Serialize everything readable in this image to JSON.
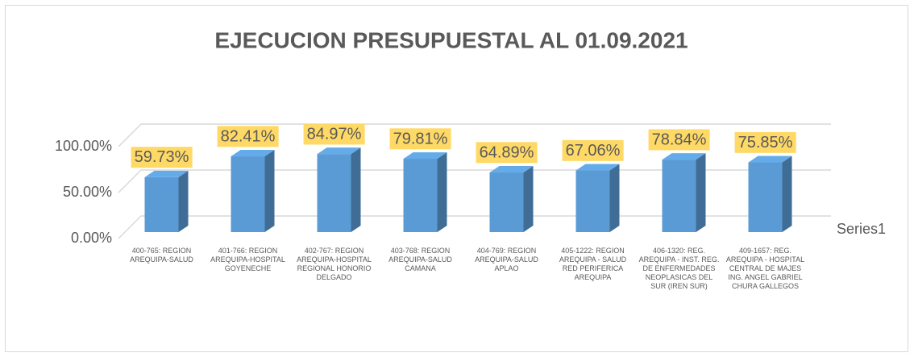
{
  "chart_data": {
    "type": "bar3d",
    "title": "EJECUCION PRESUPUESTAL AL 01.09.2021",
    "categories": [
      "400-765: REGION AREQUIPA-SALUD",
      "401-766: REGION AREQUIPA-HOSPITAL GOYENECHE",
      "402-767: REGION AREQUIPA-HOSPITAL REGIONAL HONORIO DELGADO",
      "403-768: REGION AREQUIPA-SALUD CAMANA",
      "404-769: REGION AREQUIPA-SALUD APLAO",
      "405-1222: REGION AREQUIPA - SALUD RED PERIFERICA AREQUIPA",
      "406-1320: REG. AREQUIPA - INST. REG. DE ENFERMEDADES NEOPLASICAS DEL SUR (IREN SUR)",
      "409-1657: REG. AREQUIPA - HOSPITAL CENTRAL DE MAJES ING. ANGEL GABRIEL CHURA GALLEGOS"
    ],
    "series": [
      {
        "name": "Series1",
        "color": "#5b9bd5",
        "values": [
          59.73,
          82.41,
          84.97,
          79.81,
          64.89,
          67.06,
          78.84,
          75.85
        ],
        "value_labels": [
          "59.73%",
          "82.41%",
          "84.97%",
          "79.81%",
          "64.89%",
          "67.06%",
          "78.84%",
          "75.85%"
        ]
      }
    ],
    "ylim": [
      0,
      100
    ],
    "yticks": [
      {
        "value": 0,
        "label": "0.00%"
      },
      {
        "value": 50,
        "label": "50.00%"
      },
      {
        "value": 100,
        "label": "100.00%"
      }
    ],
    "grid": true,
    "legend": "right"
  }
}
